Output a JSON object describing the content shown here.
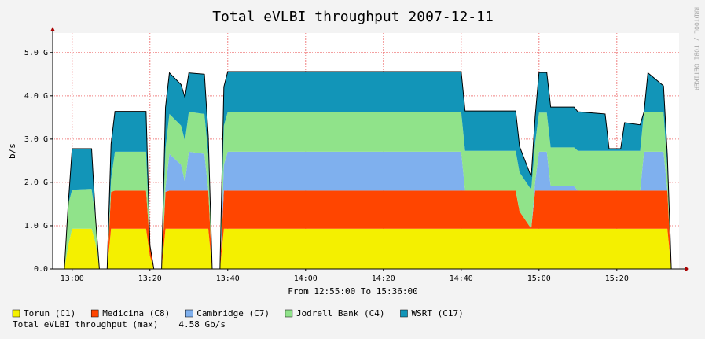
{
  "chart_data": {
    "type": "area",
    "stacked": true,
    "title": "Total eVLBI throughput 2007-12-11",
    "ylabel": "b/s",
    "xlabel": "From 12:55:00 To 15:36:00",
    "watermark": "RRDTOOL / TOBI OETIKER",
    "x": [
      "12:55",
      "12:58",
      "12:59",
      "13:00",
      "13:05",
      "13:06",
      "13:07",
      "13:09",
      "13:10",
      "13:11",
      "13:19",
      "13:20",
      "13:21",
      "13:23",
      "13:24",
      "13:25",
      "13:28",
      "13:29",
      "13:30",
      "13:34",
      "13:35",
      "13:36",
      "13:38",
      "13:39",
      "13:40",
      "14:40",
      "14:41",
      "14:54",
      "14:55",
      "14:58",
      "14:59",
      "15:00",
      "15:02",
      "15:03",
      "15:09",
      "15:10",
      "15:17",
      "15:18",
      "15:21",
      "15:22",
      "15:26",
      "15:27",
      "15:28",
      "15:32",
      "15:33",
      "15:34",
      "15:36"
    ],
    "series": [
      {
        "name": "Torun (C1)",
        "color": "#f4f000",
        "values": [
          0,
          0,
          0.55,
          0.93,
          0.93,
          0.6,
          0,
          0,
          0.93,
          0.93,
          0.93,
          0.3,
          0,
          0,
          0.93,
          0.93,
          0.93,
          0.93,
          0.93,
          0.93,
          0.93,
          0,
          0,
          0.93,
          0.93,
          0.93,
          0.93,
          0.93,
          0.93,
          0.93,
          0.93,
          0.93,
          0.93,
          0.93,
          0.93,
          0.93,
          0.93,
          0.93,
          0.93,
          0.93,
          0.93,
          0.93,
          0.93,
          0.93,
          0.93,
          0,
          0
        ]
      },
      {
        "name": "Medicina (C8)",
        "color": "#ff4500",
        "values": [
          0,
          0,
          0,
          0,
          0,
          0,
          0,
          0,
          0.85,
          0.88,
          0.88,
          0.25,
          0,
          0,
          0.85,
          0.88,
          0.88,
          0.88,
          0.88,
          0.88,
          0.88,
          0,
          0,
          0.88,
          0.88,
          0.88,
          0.88,
          0.88,
          0.4,
          0,
          0.88,
          0.88,
          0.88,
          0.88,
          0.88,
          0.88,
          0.88,
          0.88,
          0.88,
          0.88,
          0.88,
          0.88,
          0.88,
          0.88,
          0.88,
          0,
          0
        ]
      },
      {
        "name": "Cambridge (C7)",
        "color": "#7fb0ee",
        "values": [
          0,
          0,
          0,
          0,
          0,
          0,
          0,
          0,
          0,
          0,
          0,
          0,
          0,
          0,
          0.1,
          0.85,
          0.6,
          0.2,
          0.9,
          0.85,
          0,
          0,
          0,
          0.6,
          0.9,
          0.9,
          0,
          0,
          0,
          0,
          0.2,
          0.9,
          0.9,
          0.1,
          0.1,
          0,
          0,
          0,
          0,
          0,
          0,
          0.9,
          0.9,
          0.9,
          0,
          0,
          0
        ]
      },
      {
        "name": "Jodrell Bank (C4)",
        "color": "#90e38a",
        "values": [
          0,
          0,
          0.95,
          0.9,
          0.92,
          0.6,
          0,
          0,
          0.3,
          0.9,
          0.9,
          0,
          0,
          0,
          0.9,
          0.92,
          0.9,
          0.95,
          0.92,
          0.92,
          0.8,
          0,
          0,
          0.9,
          0.92,
          0.92,
          0.92,
          0.92,
          0.9,
          0.9,
          0.9,
          0.9,
          0.9,
          0.9,
          0.9,
          0.92,
          0.92,
          0.92,
          0.92,
          0.92,
          0.92,
          0.92,
          0.92,
          0.92,
          0.5,
          0,
          0
        ]
      },
      {
        "name": "WSRT (C17)",
        "color": "#1295b8",
        "values": [
          0,
          0,
          0,
          0.95,
          0.93,
          0,
          0,
          0,
          0.8,
          0.93,
          0.93,
          0,
          0,
          0,
          0.95,
          0.95,
          0.95,
          1.0,
          0.9,
          0.92,
          0.45,
          0,
          0,
          0.9,
          0.93,
          0.93,
          0.92,
          0.92,
          0.6,
          0.3,
          0.6,
          0.93,
          0.93,
          0.93,
          0.93,
          0.9,
          0.85,
          0.05,
          0.05,
          0.65,
          0.6,
          0,
          0.9,
          0.6,
          0.3,
          0,
          0
        ]
      }
    ],
    "xlim": [
      "12:55",
      "15:36"
    ],
    "xticks": [
      "13:00",
      "13:20",
      "13:40",
      "14:00",
      "14:20",
      "14:40",
      "15:00",
      "15:20"
    ],
    "ylim": [
      0,
      5.45
    ],
    "yticks": [
      {
        "value": 0,
        "label": "0.0"
      },
      {
        "value": 1,
        "label": "1.0 G"
      },
      {
        "value": 2,
        "label": "2.0 G"
      },
      {
        "value": 3,
        "label": "3.0 G"
      },
      {
        "value": 4,
        "label": "4.0 G"
      },
      {
        "value": 5,
        "label": "5.0 G"
      }
    ],
    "grid": true,
    "legend": "bottom",
    "summary": {
      "label": "Total eVLBI throughput (max)",
      "value": "4.58 Gb/s"
    }
  }
}
